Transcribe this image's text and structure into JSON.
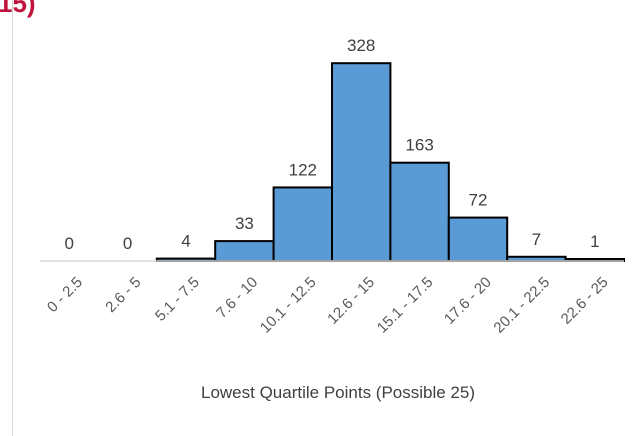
{
  "corner_text": "15)",
  "chart_data": {
    "type": "bar",
    "title": "",
    "xlabel": "Lowest Quartile Points (Possible 25)",
    "ylabel": "",
    "categories": [
      "0 - 2.5",
      "2.6 - 5",
      "5.1 - 7.5",
      "7.6 - 10",
      "10.1 - 12.5",
      "12.6 - 15",
      "15.1 - 17.5",
      "17.6 - 20",
      "20.1 - 22.5",
      "22.6 - 25"
    ],
    "values": [
      0,
      0,
      4,
      33,
      122,
      328,
      163,
      72,
      7,
      1
    ],
    "data_labels": [
      "0",
      "0",
      "4",
      "33",
      "122",
      "328",
      "163",
      "72",
      "7",
      "1"
    ],
    "ylim": [
      0,
      330
    ],
    "bar_color": "#5b9bd5",
    "grid": false,
    "legend": "none"
  }
}
